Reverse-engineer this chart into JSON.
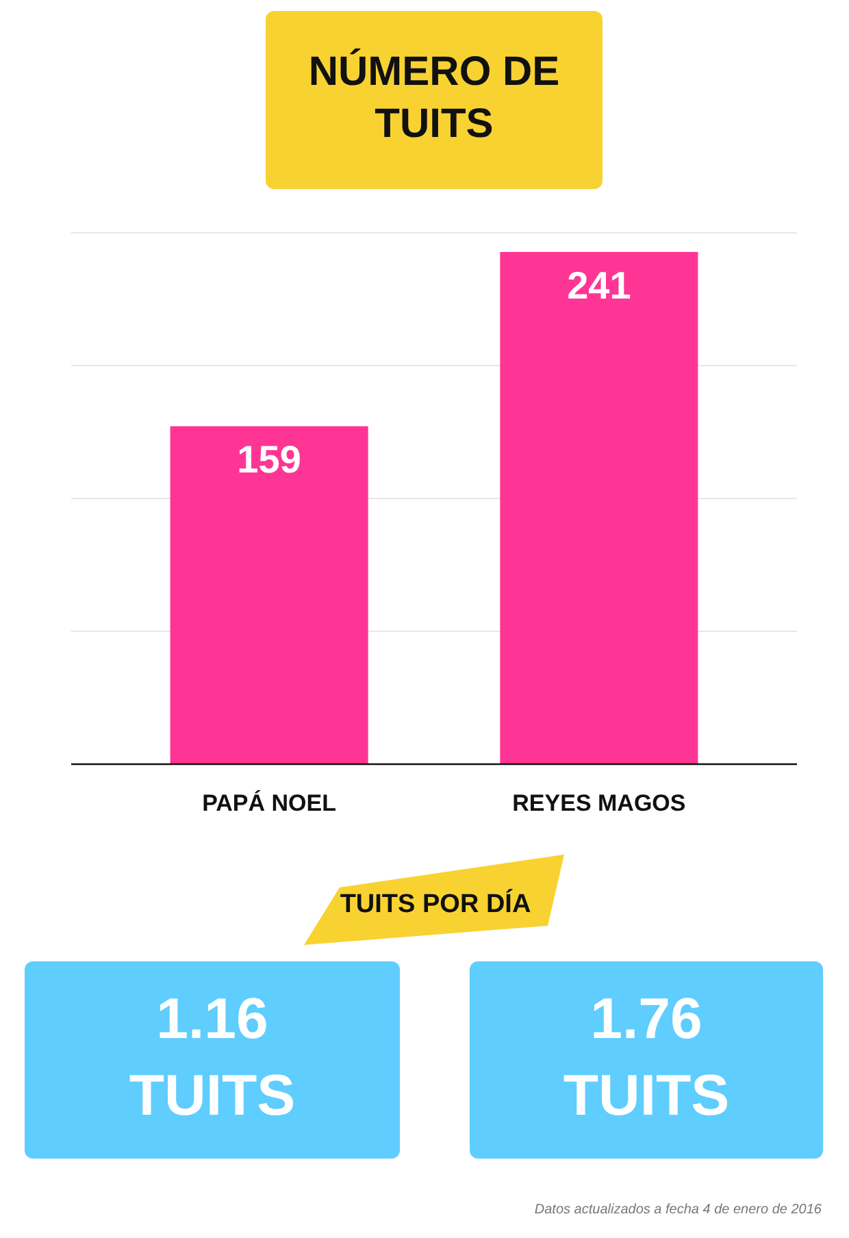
{
  "chart_data": [
    {
      "type": "bar",
      "title": "NÚMERO DE TUITS",
      "categories": [
        "PAPÁ NOEL",
        "REYES MAGOS"
      ],
      "values": [
        159,
        241
      ],
      "color": "#ff3595",
      "ylim": [
        0,
        250
      ],
      "yticks": [
        {
          "value": 0,
          "label": null
        },
        {
          "value": 62.5,
          "label": null
        },
        {
          "value": 125,
          "label": null
        },
        {
          "value": 187.5,
          "label": null
        },
        {
          "value": 250,
          "label": null
        }
      ],
      "grid": "y",
      "tick_labels": "x",
      "data_labels": true,
      "annotations": [
        "Datos actualizados a fecha 4 de enero de 2016"
      ]
    },
    {
      "type": "other",
      "title": "TUITS POR DÍA",
      "annotations": [
        "1.16 TUITS",
        "1.76 TUITS"
      ]
    }
  ]
}
